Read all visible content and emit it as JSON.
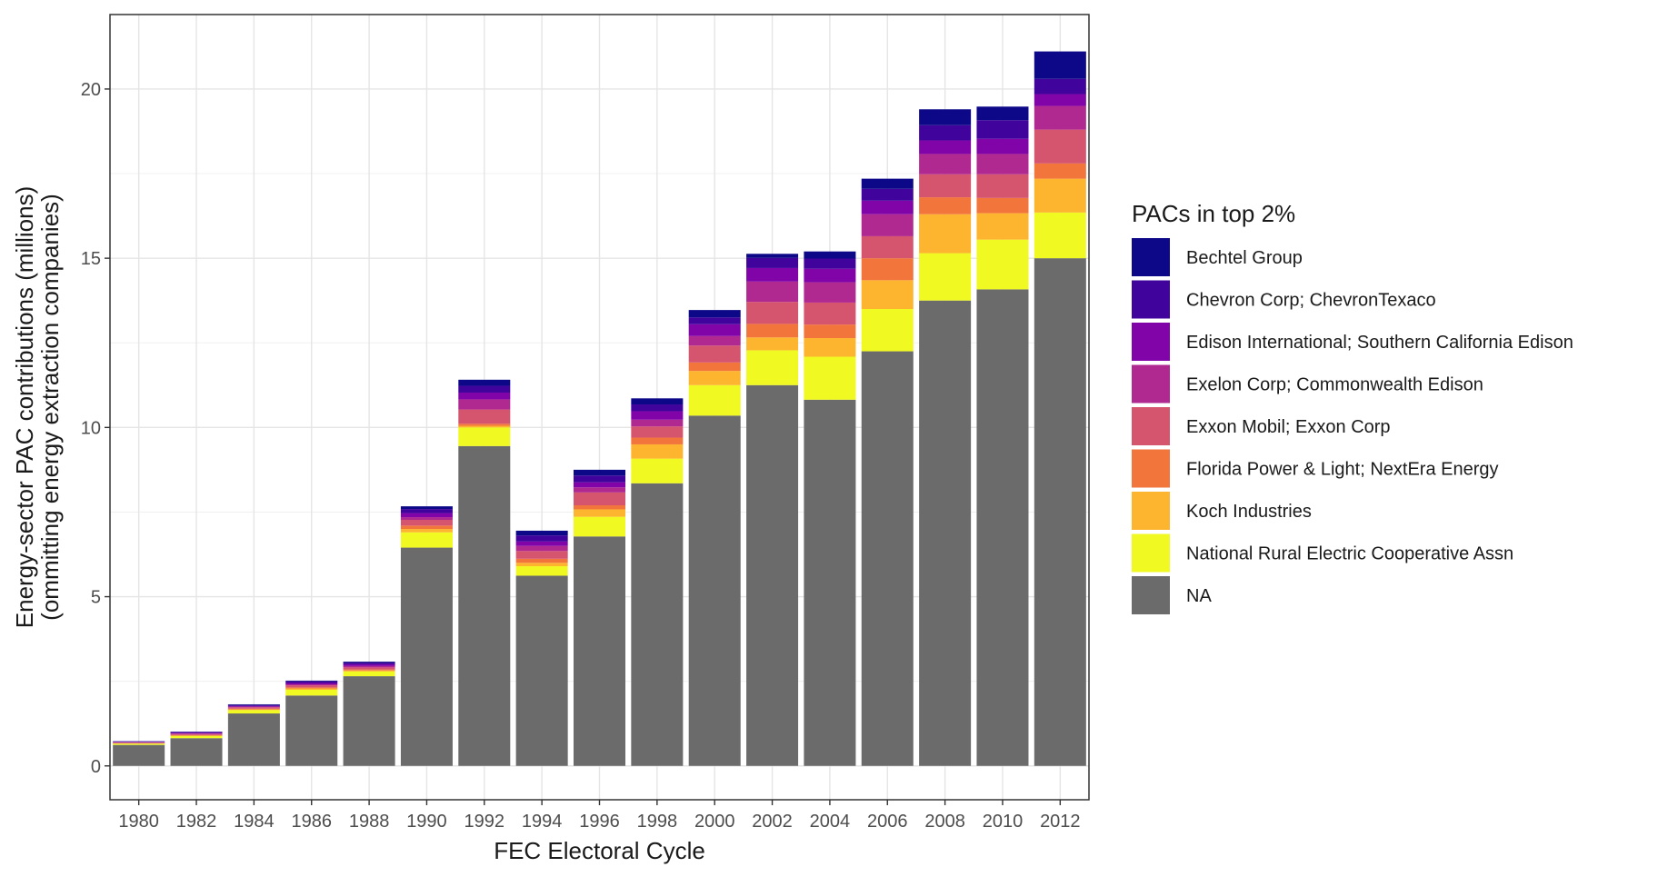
{
  "chart_data": {
    "type": "bar",
    "stacked": true,
    "title": "",
    "xlabel": "FEC Electoral Cycle",
    "ylabel_lines": [
      "Energy-sector PAC contributions (millions)",
      "(ommitting energy extraction companies)"
    ],
    "ylim": [
      -1,
      22.2
    ],
    "yticks": [
      0,
      5,
      10,
      15,
      20
    ],
    "grid": true,
    "legend_position": "right",
    "legend_title": "PACs in top 2%",
    "categories": [
      "1980",
      "1982",
      "1984",
      "1986",
      "1988",
      "1990",
      "1992",
      "1994",
      "1996",
      "1998",
      "2000",
      "2002",
      "2004",
      "2006",
      "2008",
      "2010",
      "2012"
    ],
    "series": [
      {
        "name": "NA",
        "color": "#6b6b6b",
        "values": [
          0.62,
          0.82,
          1.55,
          2.08,
          2.65,
          6.45,
          9.45,
          5.62,
          6.78,
          8.35,
          10.35,
          11.25,
          10.82,
          12.25,
          13.75,
          14.08,
          15.0
        ]
      },
      {
        "name": "National Rural Electric Cooperative Assn",
        "color": "#f0f921",
        "values": [
          0.04,
          0.07,
          0.1,
          0.17,
          0.14,
          0.45,
          0.55,
          0.28,
          0.58,
          0.73,
          0.9,
          1.03,
          1.27,
          1.25,
          1.4,
          1.47,
          1.35
        ]
      },
      {
        "name": "Koch Industries",
        "color": "#fdb42f",
        "values": [
          0.0,
          0.0,
          0.02,
          0.04,
          0.03,
          0.1,
          0.05,
          0.1,
          0.22,
          0.42,
          0.42,
          0.38,
          0.55,
          0.85,
          1.15,
          0.78,
          1.0
        ]
      },
      {
        "name": "Florida Power & Light; NextEra Energy",
        "color": "#f2763c",
        "values": [
          0.01,
          0.02,
          0.02,
          0.03,
          0.03,
          0.1,
          0.06,
          0.12,
          0.12,
          0.2,
          0.25,
          0.4,
          0.4,
          0.65,
          0.5,
          0.45,
          0.45
        ]
      },
      {
        "name": "Exxon Mobil; Exxon Corp",
        "color": "#d5546e",
        "values": [
          0.02,
          0.03,
          0.04,
          0.06,
          0.06,
          0.17,
          0.42,
          0.23,
          0.38,
          0.33,
          0.5,
          0.65,
          0.65,
          0.65,
          0.68,
          0.7,
          1.0
        ]
      },
      {
        "name": "Exelon Corp; Commonwealth Edison",
        "color": "#b02991",
        "values": [
          0.01,
          0.02,
          0.02,
          0.03,
          0.04,
          0.08,
          0.3,
          0.15,
          0.15,
          0.2,
          0.28,
          0.6,
          0.6,
          0.65,
          0.6,
          0.6,
          0.7
        ]
      },
      {
        "name": "Edison International; Southern California Edison",
        "color": "#8004a8",
        "values": [
          0.01,
          0.02,
          0.02,
          0.04,
          0.05,
          0.12,
          0.2,
          0.13,
          0.15,
          0.25,
          0.35,
          0.4,
          0.4,
          0.4,
          0.4,
          0.45,
          0.35
        ]
      },
      {
        "name": "Chevron Corp; ChevronTexaco",
        "color": "#40039c",
        "values": [
          0.01,
          0.02,
          0.03,
          0.05,
          0.05,
          0.12,
          0.2,
          0.18,
          0.2,
          0.2,
          0.2,
          0.3,
          0.3,
          0.35,
          0.45,
          0.55,
          0.45
        ]
      },
      {
        "name": "Bechtel Group",
        "color": "#0d0887",
        "values": [
          0.01,
          0.01,
          0.02,
          0.02,
          0.03,
          0.08,
          0.18,
          0.14,
          0.17,
          0.18,
          0.22,
          0.12,
          0.21,
          0.3,
          0.47,
          0.4,
          0.81
        ]
      }
    ],
    "legend_order": [
      "Bechtel Group",
      "Chevron Corp; ChevronTexaco",
      "Edison International; Southern California Edison",
      "Exelon Corp; Commonwealth Edison",
      "Exxon Mobil; Exxon Corp",
      "Florida Power & Light; NextEra Energy",
      "Koch Industries",
      "National Rural Electric Cooperative Assn",
      "NA"
    ]
  }
}
